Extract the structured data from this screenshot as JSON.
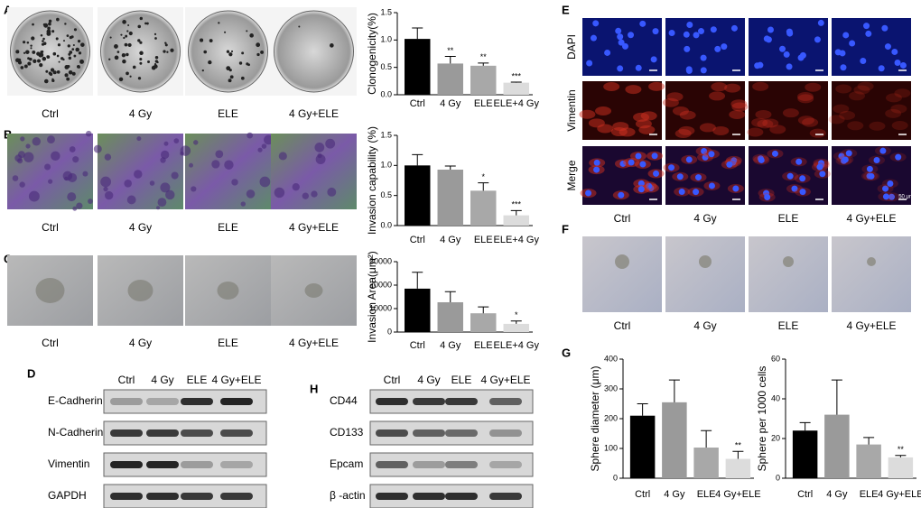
{
  "figure": {
    "panel_letters": [
      "A",
      "B",
      "C",
      "D",
      "E",
      "F",
      "G",
      "H"
    ],
    "photo_rows": [
      {
        "conditions": [
          "Ctrl",
          "4 Gy",
          "ELE",
          "4 Gy+ELE"
        ]
      },
      {
        "conditions": [
          "Ctrl",
          "4 Gy",
          "ELE",
          "4 Gy+ELE"
        ]
      },
      {
        "conditions": [
          "Ctrl",
          "4 Gy",
          "ELE",
          "4 Gy+ELE"
        ]
      }
    ],
    "E": {
      "conditions": [
        "Ctrl",
        "4 Gy",
        "ELE",
        "4 Gy+ELE"
      ],
      "rows": [
        "DAPI",
        "Vimentin",
        "Merge"
      ],
      "scale_bar": "50 μm"
    },
    "F": {
      "conditions": [
        "Ctrl",
        "4 Gy",
        "ELE",
        "4 Gy+ELE"
      ]
    },
    "D": {
      "conditions": [
        "Ctrl",
        "4 Gy",
        "ELE",
        "4 Gy+ELE"
      ],
      "proteins": [
        "E-Cadherin",
        "N-Cadherin",
        "Vimentin",
        "GAPDH"
      ]
    },
    "H": {
      "conditions": [
        "Ctrl",
        "4 Gy",
        "ELE",
        "4 Gy+ELE"
      ],
      "proteins": [
        "CD44",
        "CD133",
        "Epcam",
        "β -actin"
      ]
    }
  },
  "chart_data": [
    {
      "type": "bar",
      "ylabel": "Clonogenicity(%)",
      "categories": [
        "Ctrl",
        "4 Gy",
        "ELE",
        "ELE+4 Gy"
      ],
      "values": [
        1.02,
        0.57,
        0.53,
        0.22
      ],
      "errors": [
        0.2,
        0.13,
        0.05,
        0.01
      ],
      "annotations": [
        null,
        "**",
        "**",
        "***"
      ],
      "colors": [
        "#000000",
        "#9a9a9a",
        "#a8a8a8",
        "#dcdcdc"
      ],
      "ylim": [
        0,
        1.5
      ],
      "yticks": [
        {
          "value": 0,
          "label": "0.0"
        },
        {
          "value": 0.5,
          "label": "0.5"
        },
        {
          "value": 1,
          "label": "1.0"
        },
        {
          "value": 1.5,
          "label": "1.5"
        }
      ]
    },
    {
      "type": "bar",
      "ylabel": "Invasion capability (%)",
      "categories": [
        "Ctrl",
        "4 Gy",
        "ELE",
        "ELE+4 Gy"
      ],
      "values": [
        1.0,
        0.93,
        0.58,
        0.17
      ],
      "errors": [
        0.18,
        0.06,
        0.13,
        0.08
      ],
      "annotations": [
        null,
        null,
        "*",
        "***"
      ],
      "colors": [
        "#000000",
        "#9a9a9a",
        "#a8a8a8",
        "#dcdcdc"
      ],
      "ylim": [
        0,
        1.5
      ],
      "yticks": [
        {
          "value": 0,
          "label": "0.0"
        },
        {
          "value": 0.5,
          "label": "0.5"
        },
        {
          "value": 1,
          "label": "1.0"
        },
        {
          "value": 1.5,
          "label": "1.5"
        }
      ]
    },
    {
      "type": "bar",
      "ylabel": "Invasion Area(μm²)",
      "categories": [
        "Ctrl",
        "4 Gy",
        "ELE",
        "ELE+4 Gy"
      ],
      "values": [
        18500,
        12700,
        8000,
        3500
      ],
      "errors": [
        7000,
        4500,
        2700,
        1200
      ],
      "annotations": [
        null,
        null,
        null,
        "*"
      ],
      "colors": [
        "#000000",
        "#9a9a9a",
        "#a8a8a8",
        "#dcdcdc"
      ],
      "ylim": [
        0,
        30000
      ],
      "yticks": [
        0,
        10000,
        20000,
        30000
      ]
    },
    {
      "type": "bar",
      "ylabel": "Sphere diameter (μm)",
      "categories": [
        "Ctrl",
        "4 Gy",
        "ELE",
        "4 Gy+ELE"
      ],
      "values": [
        210,
        255,
        103,
        65
      ],
      "errors": [
        40,
        75,
        57,
        25
      ],
      "annotations": [
        null,
        null,
        null,
        "**"
      ],
      "colors": [
        "#000000",
        "#9a9a9a",
        "#a8a8a8",
        "#dcdcdc"
      ],
      "ylim": [
        0,
        400
      ],
      "yticks": [
        0,
        100,
        200,
        300,
        400
      ]
    },
    {
      "type": "bar",
      "ylabel": "Sphere per 1000 cells",
      "categories": [
        "Ctrl",
        "4 Gy",
        "ELE",
        "4 Gy+ELE"
      ],
      "values": [
        24,
        32,
        17,
        10.5
      ],
      "errors": [
        4,
        17.5,
        3.5,
        1
      ],
      "annotations": [
        null,
        null,
        null,
        "**"
      ],
      "colors": [
        "#000000",
        "#9a9a9a",
        "#a8a8a8",
        "#dcdcdc"
      ],
      "ylim": [
        0,
        60
      ],
      "yticks": [
        0,
        20,
        40,
        60
      ]
    }
  ]
}
